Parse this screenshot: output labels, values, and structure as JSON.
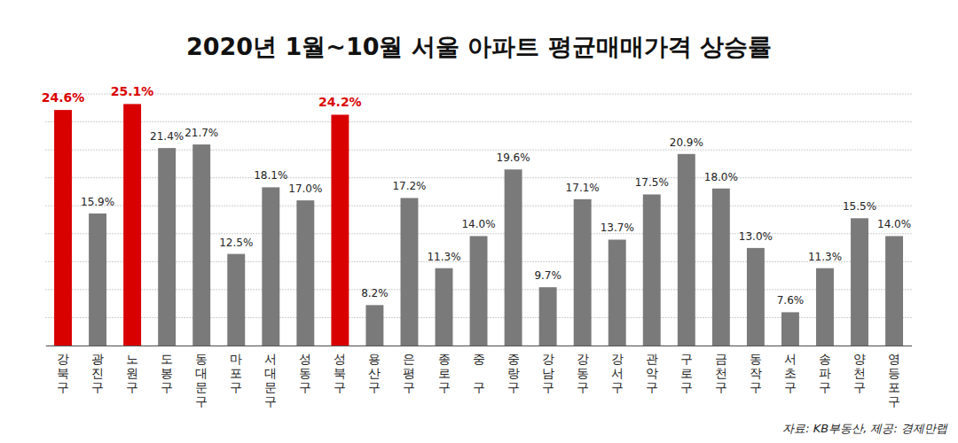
{
  "chart_data": {
    "type": "bar",
    "title": "2020년 1월~10월 서울 아파트 평균매매가격 상승률",
    "source": "자료: KB부동산, 제공: 경제만랩",
    "categories": [
      "강북구",
      "광진구",
      "노원구",
      "도봉구",
      "동대문구",
      "마포구",
      "서대문구",
      "성동구",
      "성북구",
      "용산구",
      "은평구",
      "종로구",
      "중 구",
      "중랑구",
      "강남구",
      "강동구",
      "강서구",
      "관악구",
      "구로구",
      "금천구",
      "동작구",
      "서초구",
      "송파구",
      "양천구",
      "영등포구"
    ],
    "values": [
      24.6,
      15.9,
      25.1,
      21.4,
      21.7,
      12.5,
      18.1,
      17.0,
      24.2,
      8.2,
      17.2,
      11.3,
      14.0,
      19.6,
      9.7,
      17.1,
      13.7,
      17.5,
      20.9,
      18.0,
      13.0,
      7.6,
      11.3,
      15.5,
      14.0
    ],
    "value_labels": [
      "24.6%",
      "15.9%",
      "25.1%",
      "21.4%",
      "21.7%",
      "12.5%",
      "18.1%",
      "17.0%",
      "24.2%",
      "8.2%",
      "17.2%",
      "11.3%",
      "14.0%",
      "19.6%",
      "9.7%",
      "17.1%",
      "13.7%",
      "17.5%",
      "20.9%",
      "18.0%",
      "13.0%",
      "7.6%",
      "11.3%",
      "15.5%",
      "14.0%"
    ],
    "colors": [
      "#d90000",
      "#7a7a7a",
      "#d90000",
      "#7a7a7a",
      "#7a7a7a",
      "#7a7a7a",
      "#7a7a7a",
      "#7a7a7a",
      "#d90000",
      "#7a7a7a",
      "#7a7a7a",
      "#7a7a7a",
      "#7a7a7a",
      "#7a7a7a",
      "#7a7a7a",
      "#7a7a7a",
      "#7a7a7a",
      "#7a7a7a",
      "#7a7a7a",
      "#7a7a7a",
      "#7a7a7a",
      "#7a7a7a",
      "#7a7a7a",
      "#7a7a7a",
      "#7a7a7a"
    ],
    "ylim": [
      4.8,
      25.95
    ],
    "yticks": [
      4.8,
      7.15,
      9.5,
      11.85,
      14.2,
      16.55,
      18.9,
      21.25,
      23.6,
      25.95
    ],
    "grid": true,
    "data_labels": true,
    "tick_labels": "x"
  }
}
